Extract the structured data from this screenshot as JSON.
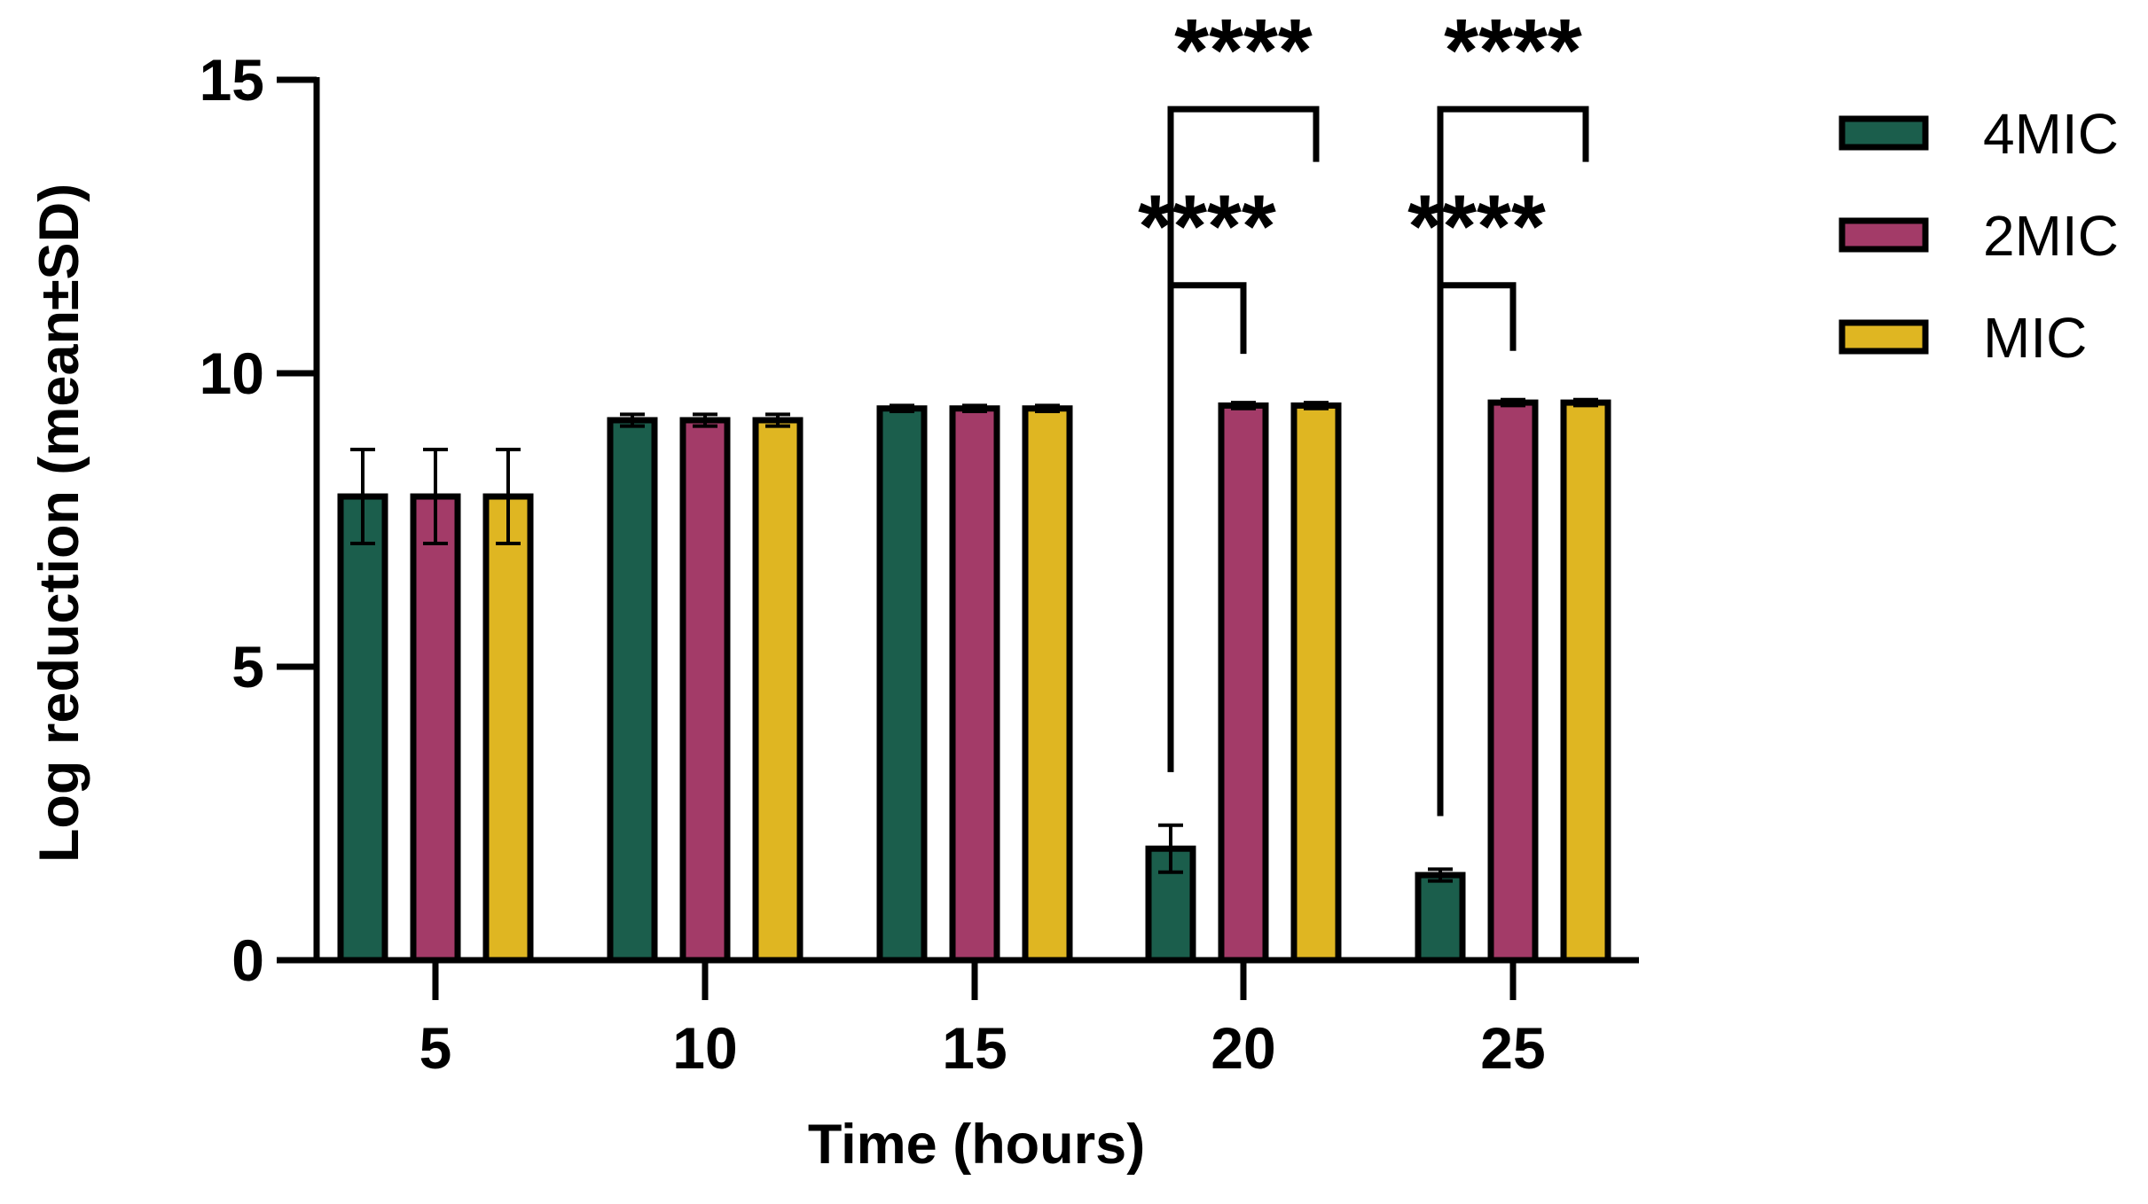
{
  "chart_data": {
    "type": "bar",
    "xlabel": "Time (hours)",
    "ylabel": "Log reduction (mean±SD)",
    "categories": [
      "5",
      "10",
      "15",
      "20",
      "25"
    ],
    "y_ticks": [
      "0",
      "5",
      "10",
      "15"
    ],
    "ylim": [
      0,
      15
    ],
    "series": [
      {
        "name": "4MIC",
        "color": "#1b5e4c",
        "values": [
          7.9,
          9.2,
          9.4,
          1.9,
          1.45
        ],
        "errors": [
          0.8,
          0.1,
          0.05,
          0.4,
          0.1
        ]
      },
      {
        "name": "2MIC",
        "color": "#a33b68",
        "values": [
          7.9,
          9.2,
          9.4,
          9.45,
          9.5
        ],
        "errors": [
          0.8,
          0.1,
          0.05,
          0.05,
          0.05
        ]
      },
      {
        "name": "MIC",
        "color": "#dfb622",
        "values": [
          7.9,
          9.2,
          9.4,
          9.45,
          9.5
        ],
        "errors": [
          0.8,
          0.1,
          0.05,
          0.05,
          0.05
        ]
      }
    ],
    "legend_position": "right",
    "grid": false,
    "significance": [
      {
        "category": "20",
        "from": "4MIC",
        "to": "2MIC",
        "label": "****"
      },
      {
        "category": "20",
        "from": "4MIC",
        "to": "MIC",
        "label": "****"
      },
      {
        "category": "25",
        "from": "4MIC",
        "to": "2MIC",
        "label": "****"
      },
      {
        "category": "25",
        "from": "4MIC",
        "to": "MIC",
        "label": "****"
      }
    ]
  }
}
